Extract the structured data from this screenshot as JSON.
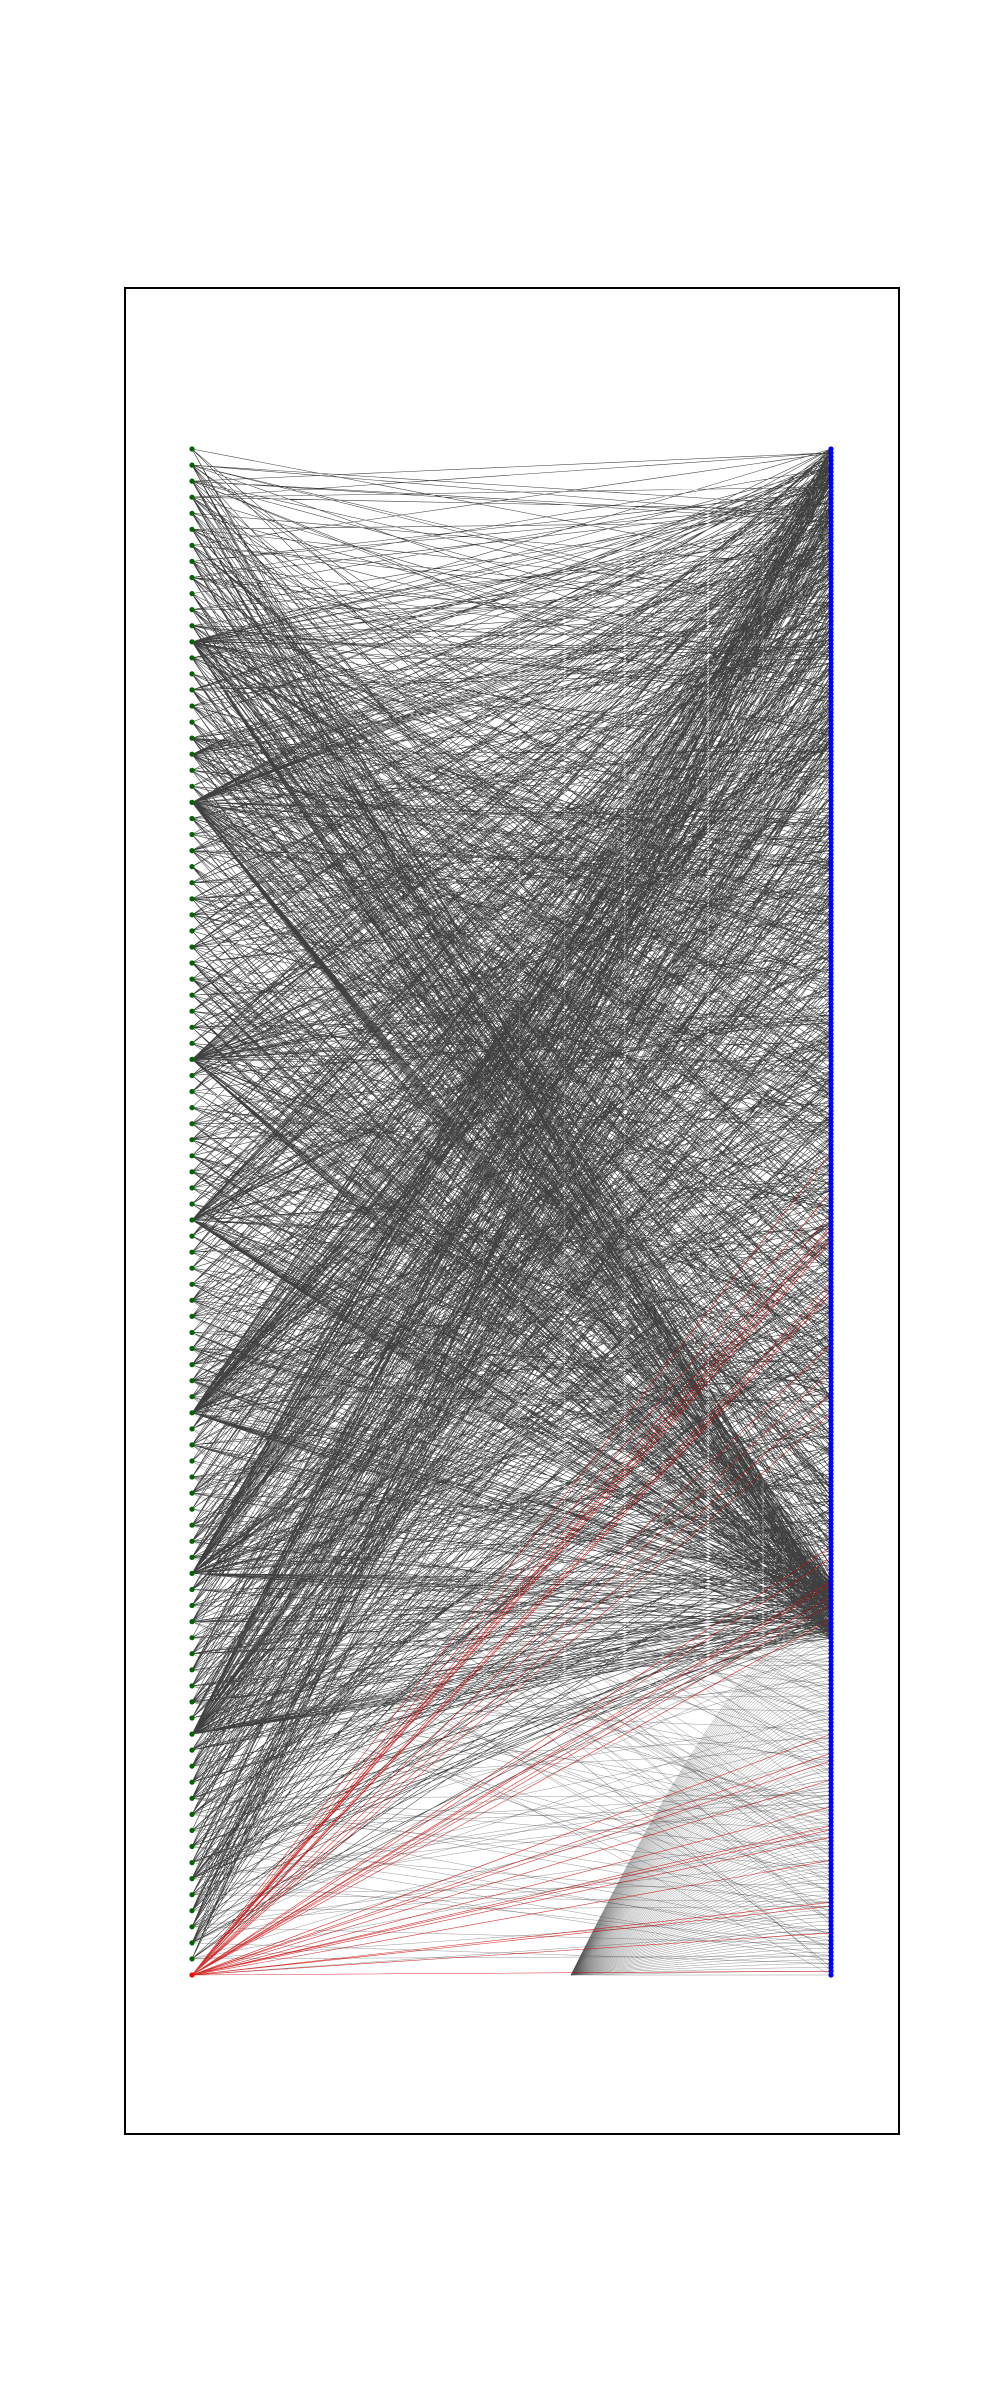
{
  "diagram": {
    "type": "bipartite-graph",
    "title": "",
    "left_nodes": {
      "count": 96,
      "color": "#006400",
      "special_node": {
        "index": 95,
        "color": "#ff0000",
        "edge_color": "#cc0000",
        "edge_count": 40
      }
    },
    "right_nodes": {
      "count": 400,
      "color": "#0000ff"
    },
    "edges": {
      "color": "#000000",
      "random_count": 1700,
      "fan_count": 130,
      "fan_color": "#555555",
      "seed": 7
    },
    "frame": {
      "color": "#000000"
    }
  }
}
